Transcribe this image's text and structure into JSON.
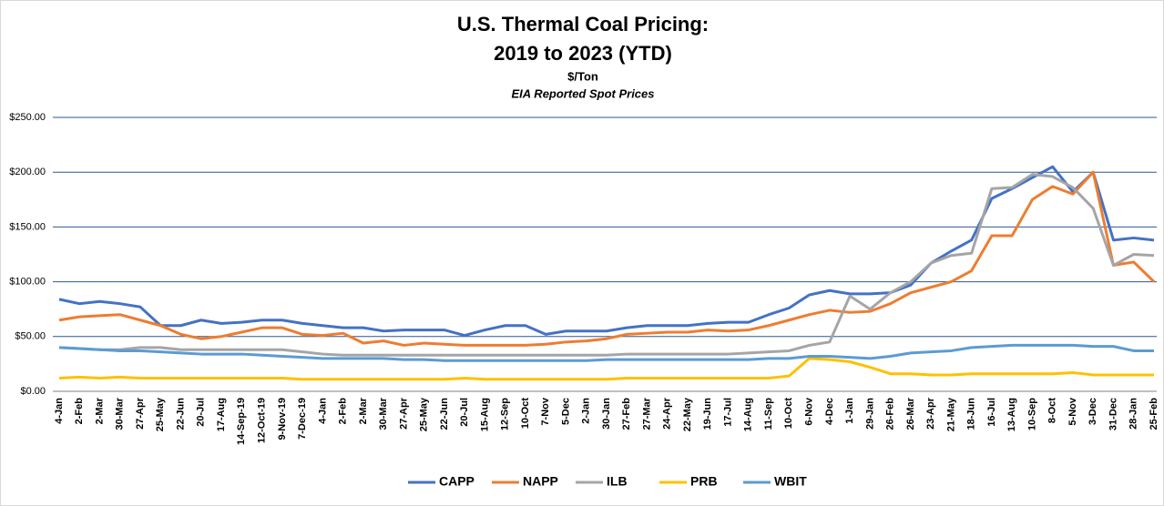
{
  "chart_data": {
    "type": "line",
    "title": [
      "U.S. Thermal Coal Pricing:",
      "2019 to 2023 (YTD)"
    ],
    "subtitle": "$/Ton",
    "annotation": "EIA Reported Spot Prices",
    "categories": [
      "4-Jan",
      "2-Feb",
      "2-Mar",
      "30-Mar",
      "27-Apr",
      "25-May",
      "22-Jun",
      "20-Jul",
      "17-Aug",
      "14-Sep-19",
      "12-Oct-19",
      "9-Nov-19",
      "7-Dec-19",
      "4-Jan",
      "2-Feb",
      "2-Mar",
      "30-Mar",
      "27-Apr",
      "25-May",
      "22-Jun",
      "20-Jul",
      "15-Aug",
      "12-Sep",
      "10-Oct",
      "7-Nov",
      "5-Dec",
      "2-Jan",
      "30-Jan",
      "27-Feb",
      "27-Mar",
      "24-Apr",
      "22-May",
      "19-Jun",
      "17-Jul",
      "14-Aug",
      "11-Sep",
      "10-Oct",
      "6-Nov",
      "4-Dec",
      "1-Jan",
      "29-Jan",
      "26-Feb",
      "26-Mar",
      "23-Apr",
      "21-May",
      "18-Jun",
      "16-Jul",
      "13-Aug",
      "10-Sep",
      "8-Oct",
      "5-Nov",
      "3-Dec",
      "31-Dec",
      "28-Jan",
      "25-Feb"
    ],
    "series": [
      {
        "name": "CAPP",
        "color": "#4472c4",
        "values": [
          84,
          80,
          82,
          80,
          77,
          60,
          60,
          65,
          62,
          63,
          65,
          65,
          62,
          60,
          58,
          58,
          55,
          56,
          56,
          56,
          51,
          56,
          60,
          60,
          52,
          55,
          55,
          55,
          58,
          60,
          60,
          60,
          62,
          63,
          63,
          70,
          76,
          88,
          92,
          89,
          89,
          90,
          97,
          117,
          128,
          138,
          176,
          185,
          195,
          205,
          182,
          200,
          138,
          140,
          138
        ]
      },
      {
        "name": "NAPP",
        "color": "#ed7d31",
        "values": [
          65,
          68,
          69,
          70,
          65,
          60,
          52,
          48,
          50,
          54,
          58,
          58,
          52,
          51,
          53,
          44,
          46,
          42,
          44,
          43,
          42,
          42,
          42,
          42,
          43,
          45,
          46,
          48,
          52,
          53,
          54,
          54,
          56,
          55,
          56,
          60,
          65,
          70,
          74,
          72,
          73,
          80,
          90,
          95,
          100,
          110,
          142,
          142,
          175,
          187,
          180,
          200,
          115,
          118,
          100
        ]
      },
      {
        "name": "ILB",
        "color": "#a5a5a5",
        "values": [
          40,
          39,
          38,
          38,
          40,
          40,
          38,
          38,
          38,
          38,
          38,
          38,
          36,
          34,
          33,
          33,
          33,
          33,
          33,
          33,
          33,
          33,
          33,
          33,
          33,
          33,
          33,
          33,
          34,
          34,
          34,
          34,
          34,
          34,
          35,
          36,
          37,
          42,
          45,
          87,
          75,
          90,
          100,
          117,
          124,
          126,
          185,
          186,
          198,
          196,
          186,
          167,
          115,
          125,
          124
        ]
      },
      {
        "name": "PRB",
        "color": "#ffc000",
        "values": [
          12,
          13,
          12,
          13,
          12,
          12,
          12,
          12,
          12,
          12,
          12,
          12,
          11,
          11,
          11,
          11,
          11,
          11,
          11,
          11,
          12,
          11,
          11,
          11,
          11,
          11,
          11,
          11,
          12,
          12,
          12,
          12,
          12,
          12,
          12,
          12,
          14,
          30,
          29,
          27,
          22,
          16,
          16,
          15,
          15,
          16,
          16,
          16,
          16,
          16,
          17,
          15,
          15,
          15,
          15
        ]
      },
      {
        "name": "WBIT",
        "color": "#5b9bd5",
        "values": [
          40,
          39,
          38,
          37,
          37,
          36,
          35,
          34,
          34,
          34,
          33,
          32,
          31,
          30,
          30,
          30,
          30,
          29,
          29,
          28,
          28,
          28,
          28,
          28,
          28,
          28,
          28,
          29,
          29,
          29,
          29,
          29,
          29,
          29,
          29,
          30,
          30,
          32,
          32,
          31,
          30,
          32,
          35,
          36,
          37,
          40,
          41,
          42,
          42,
          42,
          42,
          41,
          41,
          37,
          37
        ]
      }
    ],
    "ylim": [
      0,
      250
    ],
    "yticks": [
      {
        "value": 0,
        "label": "$0.00"
      },
      {
        "value": 50,
        "label": "$50.00"
      },
      {
        "value": 100,
        "label": "$100.00"
      },
      {
        "value": 150,
        "label": "$150.00"
      },
      {
        "value": 200,
        "label": "$200.00"
      },
      {
        "value": 250,
        "label": "$250.00"
      }
    ],
    "grid": true,
    "legend": "bottom"
  }
}
